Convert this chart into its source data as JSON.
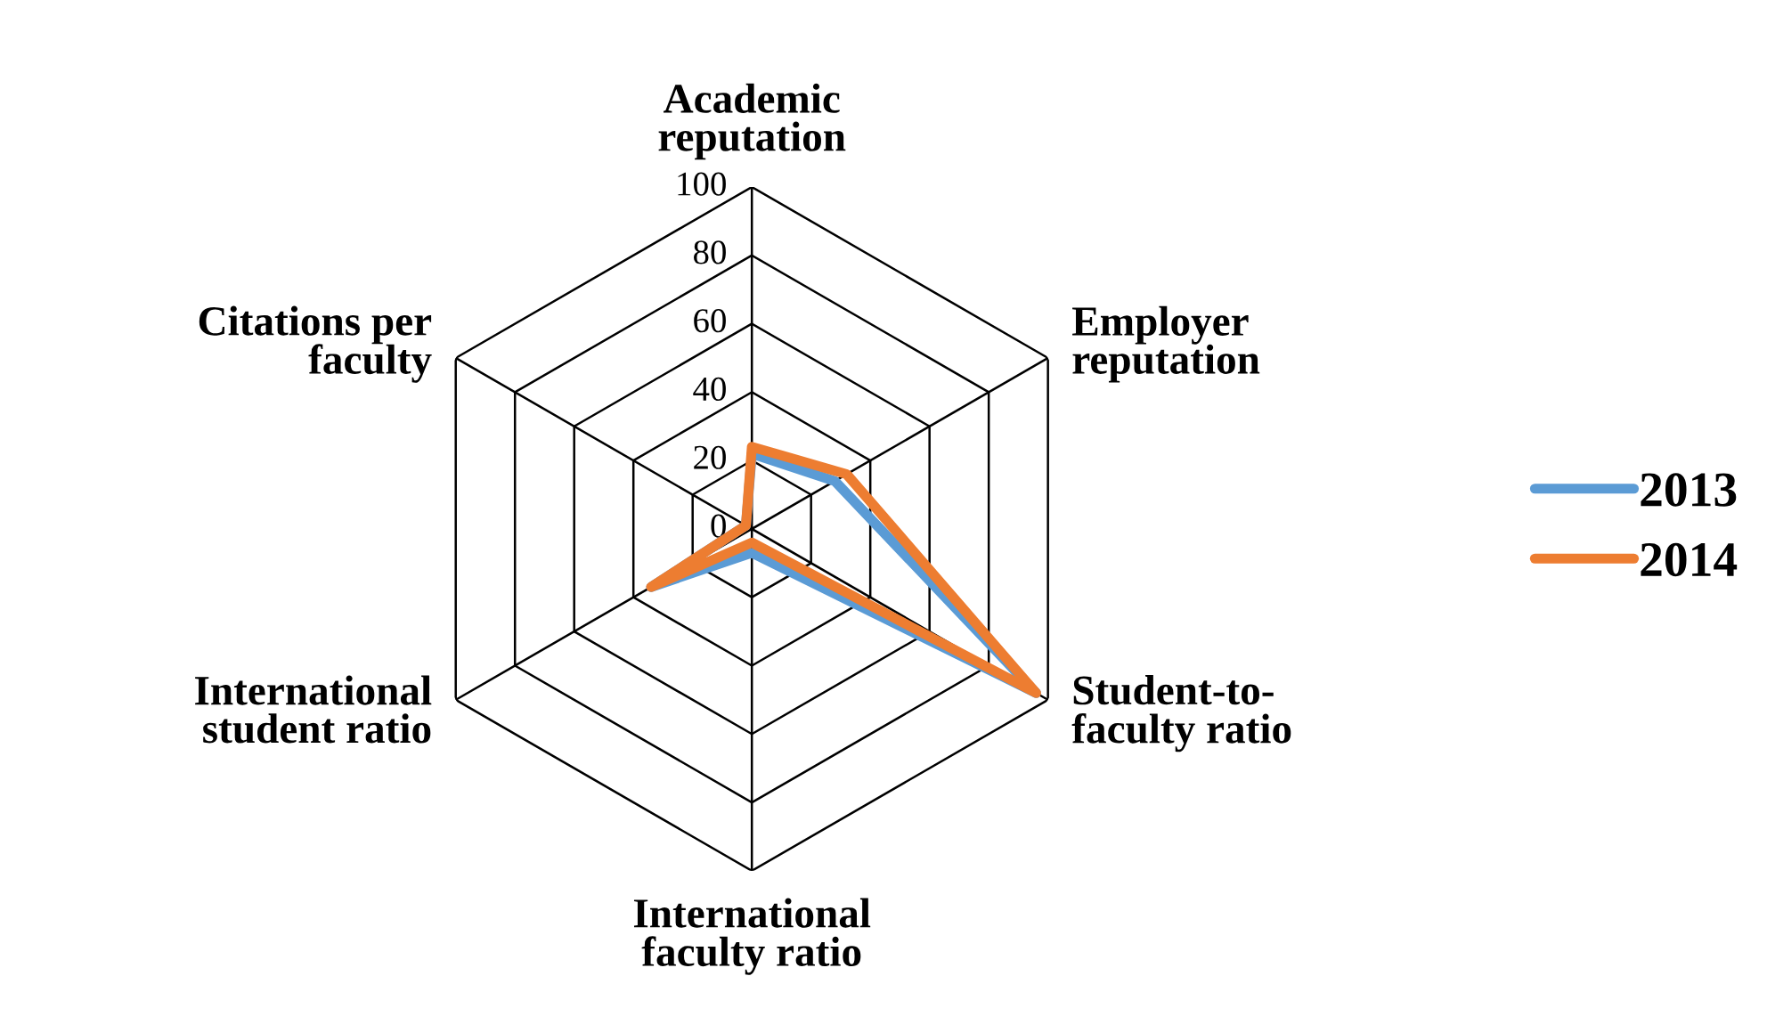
{
  "chart_data": {
    "type": "radar",
    "categories": [
      "Academic reputation",
      "Employer reputation",
      "Student-to-faculty ratio",
      "International faculty ratio",
      "International student ratio",
      "Citations per faculty"
    ],
    "series": [
      {
        "name": "2013",
        "color": "#5b9bd5",
        "values": [
          22,
          28,
          96,
          7,
          34,
          2
        ]
      },
      {
        "name": "2014",
        "color": "#ed7d31",
        "values": [
          24,
          32,
          96,
          4,
          34,
          2
        ]
      }
    ],
    "ylim": [
      0,
      100
    ],
    "yticks": [
      0,
      20,
      40,
      60,
      80,
      100
    ],
    "grid": true,
    "legend": "right",
    "marker": "none",
    "line_style": "solid"
  }
}
